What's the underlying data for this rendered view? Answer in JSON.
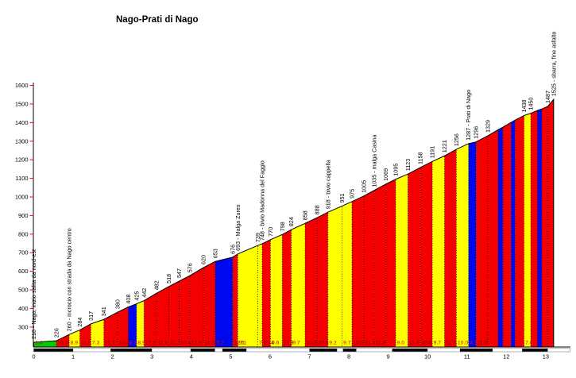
{
  "page": {
    "background": "#ffffff"
  },
  "chart_data": {
    "type": "area",
    "title": "Nago-Prati di Nago",
    "x_axis": {
      "unit": "km",
      "ticks": [
        0,
        1,
        2,
        3,
        4,
        5,
        6,
        7,
        8,
        9,
        10,
        11,
        12,
        13
      ],
      "range": [
        0,
        13.63
      ]
    },
    "y_axis": {
      "unit": "m",
      "ticks": [
        300,
        400,
        500,
        600,
        700,
        800,
        900,
        1000,
        1100,
        1200,
        1300,
        1400,
        1500,
        1600
      ],
      "range": [
        192,
        1610
      ],
      "tick_color": "#ff0000"
    },
    "colors": {
      "green": "#00cc00",
      "red": "#f40000",
      "yellow": "#ffff00",
      "blue": "#0008f0",
      "grad_text_on_red": "#7a0000",
      "grad_text_other": "#cc1100",
      "outline": "#000000",
      "ruler_black": "#000000",
      "ruler_frame": "#808080"
    },
    "points": [
      {
        "km": 0.0,
        "elev": 218,
        "label": "218 - Nago, inizio salita da nord-est"
      },
      {
        "km": 0.57,
        "elev": 226,
        "label": "226"
      },
      {
        "km": 0.9,
        "elev": 260,
        "label": "260 - incrocio con strada da Nago centro"
      },
      {
        "km": 1.17,
        "elev": 284,
        "label": "284"
      },
      {
        "km": 1.45,
        "elev": 317,
        "label": "317"
      },
      {
        "km": 1.78,
        "elev": 341,
        "label": "341"
      },
      {
        "km": 2.13,
        "elev": 380,
        "label": "380"
      },
      {
        "km": 2.4,
        "elev": 408,
        "label": "408"
      },
      {
        "km": 2.61,
        "elev": 425,
        "label": "425"
      },
      {
        "km": 2.8,
        "elev": 442,
        "label": "442"
      },
      {
        "km": 3.12,
        "elev": 482,
        "label": "482"
      },
      {
        "km": 3.43,
        "elev": 518,
        "label": "518"
      },
      {
        "km": 3.69,
        "elev": 547,
        "label": "547"
      },
      {
        "km": 3.96,
        "elev": 576,
        "label": "576"
      },
      {
        "km": 4.31,
        "elev": 620,
        "label": "620"
      },
      {
        "km": 4.61,
        "elev": 653,
        "label": "653"
      },
      {
        "km": 5.05,
        "elev": 676,
        "label": "676"
      },
      {
        "km": 5.18,
        "elev": 693,
        "label": "693 - Malga Zures"
      },
      {
        "km": 5.69,
        "elev": 739,
        "label": "739"
      },
      {
        "km": 5.8,
        "elev": 748,
        "label": "748 - bivio Madonna del Faggio"
      },
      {
        "km": 6.01,
        "elev": 770,
        "label": "770"
      },
      {
        "km": 6.31,
        "elev": 798,
        "label": "798"
      },
      {
        "km": 6.54,
        "elev": 824,
        "label": "824"
      },
      {
        "km": 6.89,
        "elev": 858,
        "label": "858"
      },
      {
        "km": 7.19,
        "elev": 888,
        "label": "888"
      },
      {
        "km": 7.47,
        "elev": 918,
        "label": "918 - bivio cappella"
      },
      {
        "km": 7.83,
        "elev": 951,
        "label": "951"
      },
      {
        "km": 8.08,
        "elev": 975,
        "label": "975"
      },
      {
        "km": 8.38,
        "elev": 1005,
        "label": "1005"
      },
      {
        "km": 8.64,
        "elev": 1035,
        "label": "1035 - malga Casina"
      },
      {
        "km": 8.94,
        "elev": 1069,
        "label": "1069"
      },
      {
        "km": 9.19,
        "elev": 1095,
        "label": "1095"
      },
      {
        "km": 9.5,
        "elev": 1123,
        "label": "1123"
      },
      {
        "km": 9.81,
        "elev": 1158,
        "label": "1158"
      },
      {
        "km": 10.12,
        "elev": 1191,
        "label": "1191"
      },
      {
        "km": 10.43,
        "elev": 1221,
        "label": "1221"
      },
      {
        "km": 10.73,
        "elev": 1256,
        "label": "1256"
      },
      {
        "km": 11.04,
        "elev": 1287,
        "label": "1287 - Prati di Nago"
      },
      {
        "km": 11.23,
        "elev": 1296,
        "label": "1296"
      },
      {
        "km": 11.53,
        "elev": 1329,
        "label": "1329"
      },
      {
        "km": 11.79,
        "elev": 1361,
        "label": ""
      },
      {
        "km": 11.91,
        "elev": 1375,
        "label": ""
      },
      {
        "km": 12.12,
        "elev": 1401,
        "label": ""
      },
      {
        "km": 12.22,
        "elev": 1413,
        "label": ""
      },
      {
        "km": 12.45,
        "elev": 1438,
        "label": "1438"
      },
      {
        "km": 12.62,
        "elev": 1450,
        "label": "1450"
      },
      {
        "km": 12.79,
        "elev": 1465,
        "label": ""
      },
      {
        "km": 12.9,
        "elev": 1473,
        "label": ""
      },
      {
        "km": 13.05,
        "elev": 1487,
        "label": "1487"
      },
      {
        "km": 13.2,
        "elev": 1525,
        "label": "1525 - sbarra, fine asfalto"
      }
    ],
    "segments": [
      {
        "grad": "1.4",
        "color": "green"
      },
      {
        "grad": "10.3",
        "color": "red"
      },
      {
        "grad": "8.9",
        "color": "yellow"
      },
      {
        "grad": "11.8",
        "color": "red"
      },
      {
        "grad": "7.3",
        "color": "yellow"
      },
      {
        "grad": "11.1",
        "color": "red"
      },
      {
        "grad": "10.4",
        "color": "red"
      },
      {
        "grad": "8.3",
        "color": "blue"
      },
      {
        "grad": "8.9",
        "color": "yellow"
      },
      {
        "grad": "12.5",
        "color": "red"
      },
      {
        "grad": "11.6",
        "color": "red"
      },
      {
        "grad": "11.2",
        "color": "red"
      },
      {
        "grad": "10.4",
        "color": "red"
      },
      {
        "grad": "12.9",
        "color": "red"
      },
      {
        "grad": "11.0",
        "color": "red"
      },
      {
        "grad": "5.2",
        "color": "blue"
      },
      {
        "grad": "12.5",
        "color": "red"
      },
      {
        "grad": "9.1",
        "color": "yellow"
      },
      {
        "grad": "7.9",
        "color": "yellow"
      },
      {
        "grad": "10.4",
        "color": "red"
      },
      {
        "grad": "9.6",
        "color": "yellow"
      },
      {
        "grad": "11.3",
        "color": "red"
      },
      {
        "grad": "9.7",
        "color": "yellow"
      },
      {
        "grad": "10.0",
        "color": "red"
      },
      {
        "grad": "10.6",
        "color": "red"
      },
      {
        "grad": "9.2",
        "color": "yellow"
      },
      {
        "grad": "9.7",
        "color": "yellow"
      },
      {
        "grad": "10.0",
        "color": "red"
      },
      {
        "grad": "11.3",
        "color": "red"
      },
      {
        "grad": "11.3",
        "color": "red"
      },
      {
        "grad": "",
        "color": "red"
      },
      {
        "grad": "9.0",
        "color": "yellow"
      },
      {
        "grad": "11.3",
        "color": "red"
      },
      {
        "grad": "10.6",
        "color": "red"
      },
      {
        "grad": "9.7",
        "color": "yellow"
      },
      {
        "grad": "11.7",
        "color": "red"
      },
      {
        "grad": "10.0",
        "color": "yellow"
      },
      {
        "grad": "4.7",
        "color": "blue"
      },
      {
        "grad": "11.0",
        "color": "red"
      },
      {
        "grad": "",
        "color": "red"
      },
      {
        "grad": "",
        "color": "blue"
      },
      {
        "grad": "",
        "color": "red"
      },
      {
        "grad": "",
        "color": "blue"
      },
      {
        "grad": "",
        "color": "red"
      },
      {
        "grad": "7.0",
        "color": "yellow"
      },
      {
        "grad": "",
        "color": "red"
      },
      {
        "grad": "",
        "color": "blue"
      },
      {
        "grad": "",
        "color": "red"
      },
      {
        "grad": "",
        "color": "red"
      }
    ],
    "ruler_blocks_km": [
      [
        0.0,
        1.0
      ],
      [
        1.95,
        3.0
      ],
      [
        3.98,
        4.6
      ],
      [
        4.79,
        5.4
      ],
      [
        7.0,
        7.7
      ],
      [
        7.85,
        8.19
      ],
      [
        9.1,
        10.0
      ],
      [
        10.82,
        11.65
      ],
      [
        12.4,
        13.05
      ]
    ]
  }
}
